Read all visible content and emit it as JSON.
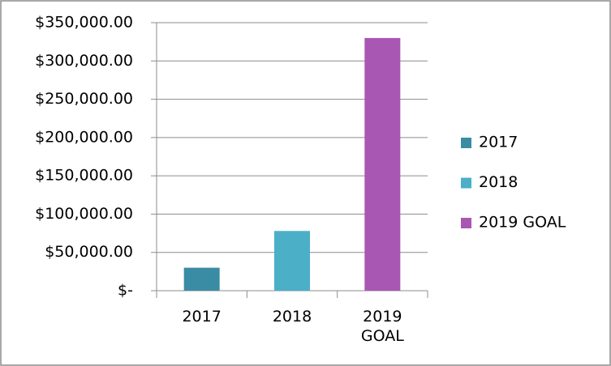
{
  "chart_data": {
    "type": "bar",
    "categories": [
      "2017",
      "2018",
      "2019 GOAL"
    ],
    "series": [
      {
        "name": "2017",
        "color": "#3a8ca4",
        "values": [
          30000,
          null,
          null
        ]
      },
      {
        "name": "2018",
        "color": "#4bafc8",
        "values": [
          null,
          78000,
          null
        ]
      },
      {
        "name": "2019 GOAL",
        "color": "#a857b2",
        "values": [
          null,
          null,
          330000
        ]
      }
    ],
    "ylim": [
      0,
      350000
    ],
    "yticks": [
      {
        "value": 0,
        "label": "$-"
      },
      {
        "value": 50000,
        "label": "$50,000.00"
      },
      {
        "value": 100000,
        "label": "$100,000.00"
      },
      {
        "value": 150000,
        "label": "$150,000.00"
      },
      {
        "value": 200000,
        "label": "$200,000.00"
      },
      {
        "value": 250000,
        "label": "$250,000.00"
      },
      {
        "value": 300000,
        "label": "$300,000.00"
      },
      {
        "value": 350000,
        "label": "$350,000.00"
      }
    ],
    "grid": true,
    "legend": "right"
  }
}
